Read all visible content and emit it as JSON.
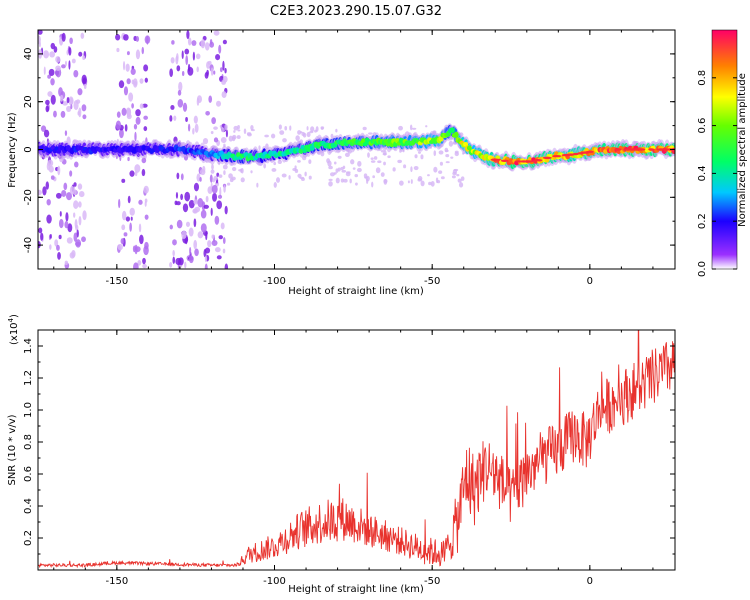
{
  "chart_data": [
    {
      "type": "heatmap",
      "title": "C2E3.2023.290.15.07.G32",
      "xlabel": "Height of straight line (km)",
      "ylabel": "Frequency (Hz)",
      "xlim": [
        -175,
        27
      ],
      "ylim": [
        -50,
        50
      ],
      "x_ticks": [
        -150,
        -100,
        -50,
        0
      ],
      "y_ticks": [
        -40,
        -20,
        0,
        20,
        40
      ],
      "x_tick_labels": [
        "-150",
        "-100",
        "-50",
        "0"
      ],
      "y_tick_labels": [
        "-40",
        "-20",
        "0",
        "20",
        "40"
      ],
      "colorbar": {
        "label": "Normalized spectral amplitude",
        "range": [
          0,
          1
        ],
        "ticks": [
          0.0,
          0.2,
          0.4,
          0.6,
          0.8
        ],
        "tick_labels": [
          "0.0",
          "0.2",
          "0.4",
          "0.6",
          "0.8"
        ]
      },
      "ridge": {
        "x": [
          -175,
          -160,
          -150,
          -140,
          -130,
          -120,
          -112,
          -105,
          -95,
          -85,
          -75,
          -65,
          -55,
          -48,
          -44,
          -40,
          -37,
          -32,
          -25,
          -18,
          -12,
          -5,
          0,
          8,
          15,
          22,
          27
        ],
        "freq": [
          0,
          0,
          0,
          0,
          0,
          -2,
          -3,
          -3,
          -1,
          2,
          3,
          3,
          3,
          4,
          8,
          2,
          -1,
          -4,
          -5,
          -5,
          -3,
          -2,
          -1,
          0,
          0,
          0,
          0
        ],
        "amplitude": [
          0.2,
          0.22,
          0.2,
          0.2,
          0.25,
          0.3,
          0.5,
          0.45,
          0.45,
          0.5,
          0.55,
          0.6,
          0.65,
          0.7,
          0.5,
          0.8,
          0.7,
          0.85,
          0.95,
          0.95,
          0.9,
          0.85,
          0.9,
          0.95,
          0.95,
          0.95,
          0.95
        ]
      },
      "noisy_bands_x": [
        [
          -175,
          -160
        ],
        [
          -150,
          -140
        ],
        [
          -133,
          -115
        ]
      ]
    },
    {
      "type": "line",
      "xlabel": "Height of straight line (km)",
      "ylabel": "SNR (10 * v/v)",
      "y_multiplier": "(x10",
      "y_exponent": "4",
      "y_multiplier_close": ")",
      "xlim": [
        -175,
        27
      ],
      "ylim": [
        0,
        15000
      ],
      "x_ticks": [
        -150,
        -100,
        -50,
        0
      ],
      "y_ticks": [
        2000,
        4000,
        6000,
        8000,
        10000,
        12000,
        14000
      ],
      "x_tick_labels": [
        "-150",
        "-100",
        "-50",
        "0"
      ],
      "y_tick_labels": [
        "0.2",
        "0.4",
        "0.6",
        "0.8",
        "1.0",
        "1.2",
        "1.4"
      ],
      "series": [
        {
          "name": "SNR",
          "color": "#e8322d",
          "trend_x": [
            -175,
            -160,
            -150,
            -140,
            -130,
            -120,
            -112,
            -108,
            -100,
            -92,
            -85,
            -78,
            -70,
            -60,
            -52,
            -46,
            -42,
            -39,
            -37,
            -33,
            -30,
            -25,
            -20,
            -15,
            -10,
            -5,
            -1,
            3,
            8,
            12,
            16,
            20,
            24,
            27
          ],
          "trend_y": [
            300,
            300,
            450,
            400,
            350,
            300,
            300,
            1000,
            1500,
            2500,
            3000,
            3200,
            2500,
            1800,
            1200,
            1000,
            3000,
            6000,
            5000,
            6500,
            6000,
            4500,
            6000,
            7000,
            7500,
            8500,
            8000,
            10000,
            10500,
            11000,
            11500,
            12000,
            12500,
            13000
          ],
          "noise": [
            100,
            100,
            100,
            100,
            100,
            100,
            100,
            600,
            800,
            1200,
            1400,
            1400,
            1100,
            900,
            900,
            900,
            2000,
            2500,
            2500,
            2000,
            2000,
            1800,
            1800,
            1800,
            1800,
            1800,
            1800,
            1800,
            1800,
            1800,
            1800,
            1800,
            1800,
            1800
          ]
        }
      ]
    }
  ]
}
